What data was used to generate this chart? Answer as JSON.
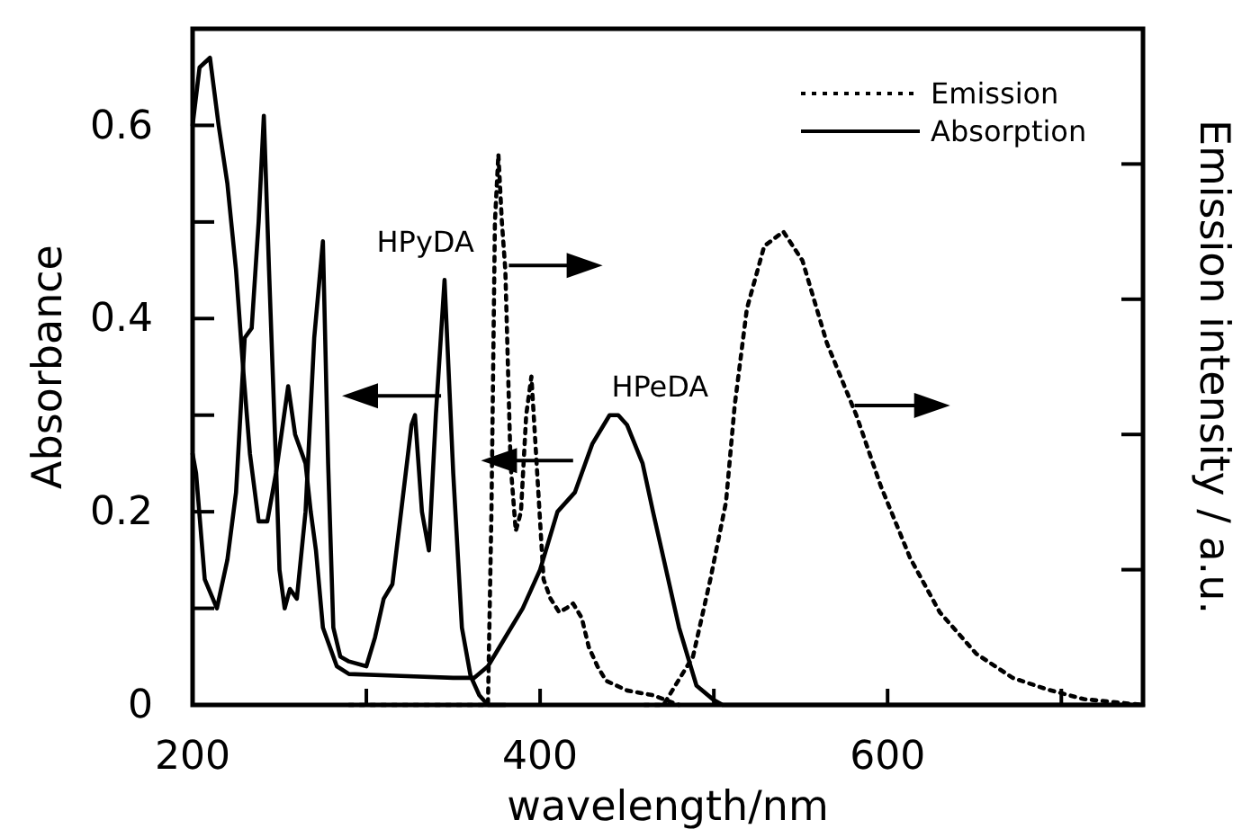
{
  "chart_data": {
    "type": "line",
    "xlabel": "wavelength/nm",
    "ylabel": "Absorbance",
    "y2label": "Emission intensity / a.u.",
    "xlim": [
      200,
      747
    ],
    "ylim": [
      0,
      0.7
    ],
    "xticks": [
      200,
      {
        "value": 300,
        "label": null
      },
      400,
      {
        "value": 500,
        "label": null
      },
      600,
      {
        "value": 700,
        "label": null
      }
    ],
    "yticks": [
      0,
      {
        "value": 0.1,
        "label": null
      },
      0.2,
      {
        "value": 0.3,
        "label": null
      },
      0.4,
      {
        "value": 0.5,
        "label": null
      },
      0.6
    ],
    "legend": "top right",
    "grid": false,
    "marker": "none",
    "annotations": [
      "HPyDA",
      "HPeDA"
    ],
    "series": [
      {
        "name": "Absorption",
        "color": "#000000",
        "line_style": "solid",
        "x": [
          200,
          202,
          207,
          214,
          220,
          225,
          230,
          234,
          238,
          241,
          244,
          248,
          250,
          253,
          256,
          260,
          265,
          270,
          275,
          278,
          281,
          285,
          290,
          300,
          305,
          310,
          315,
          320,
          326,
          328,
          332,
          336,
          340,
          345,
          350,
          355,
          360,
          365,
          370,
          380
        ],
        "values": [
          0.26,
          0.24,
          0.13,
          0.1,
          0.15,
          0.22,
          0.38,
          0.39,
          0.5,
          0.61,
          0.45,
          0.25,
          0.14,
          0.1,
          0.12,
          0.11,
          0.2,
          0.38,
          0.48,
          0.25,
          0.08,
          0.05,
          0.045,
          0.04,
          0.07,
          0.11,
          0.125,
          0.2,
          0.29,
          0.3,
          0.2,
          0.16,
          0.3,
          0.44,
          0.24,
          0.08,
          0.03,
          0.01,
          0,
          0
        ]
      },
      {
        "color": "#000000",
        "line_style": "solid",
        "x": [
          200,
          204,
          210,
          215,
          220,
          225,
          229,
          233,
          238,
          243,
          248,
          255,
          259,
          265,
          268,
          271,
          275,
          283,
          290,
          320,
          350,
          362,
          370,
          380,
          390,
          400,
          410,
          420,
          430,
          440,
          445,
          450,
          459,
          465,
          470,
          480,
          490,
          500,
          505,
          747
        ],
        "values": [
          0.6,
          0.66,
          0.67,
          0.6,
          0.54,
          0.45,
          0.35,
          0.26,
          0.19,
          0.19,
          0.24,
          0.33,
          0.28,
          0.25,
          0.2,
          0.16,
          0.08,
          0.04,
          0.032,
          0.03,
          0.028,
          0.028,
          0.04,
          0.07,
          0.1,
          0.14,
          0.2,
          0.22,
          0.27,
          0.3,
          0.3,
          0.29,
          0.25,
          0.2,
          0.16,
          0.08,
          0.02,
          0.005,
          0,
          0
        ]
      },
      {
        "name": "Emission",
        "color": "#000000",
        "line_style": "dotted",
        "x": [
          290,
          370,
          372,
          374,
          376,
          378,
          380,
          383,
          386,
          389,
          392,
          395,
          398,
          402,
          406,
          411,
          415,
          419,
          424,
          428,
          433,
          438,
          450,
          465,
          480
        ],
        "values": [
          0,
          0,
          0.2,
          0.5,
          0.57,
          0.5,
          0.45,
          0.25,
          0.18,
          0.2,
          0.3,
          0.34,
          0.25,
          0.13,
          0.11,
          0.096,
          0.1,
          0.105,
          0.09,
          0.06,
          0.04,
          0.025,
          0.015,
          0.01,
          0
        ]
      },
      {
        "color": "#000000",
        "line_style": "dotted",
        "x": [
          460,
          471,
          488,
          498,
          507,
          512,
          519,
          529,
          540,
          551,
          565,
          582,
          596,
          613,
          630,
          651,
          672,
          692,
          713,
          747
        ],
        "values": [
          0,
          0,
          0.05,
          0.13,
          0.21,
          0.31,
          0.41,
          0.475,
          0.49,
          0.46,
          0.375,
          0.3,
          0.227,
          0.152,
          0.096,
          0.053,
          0.028,
          0.016,
          0.006,
          0
        ]
      }
    ]
  }
}
